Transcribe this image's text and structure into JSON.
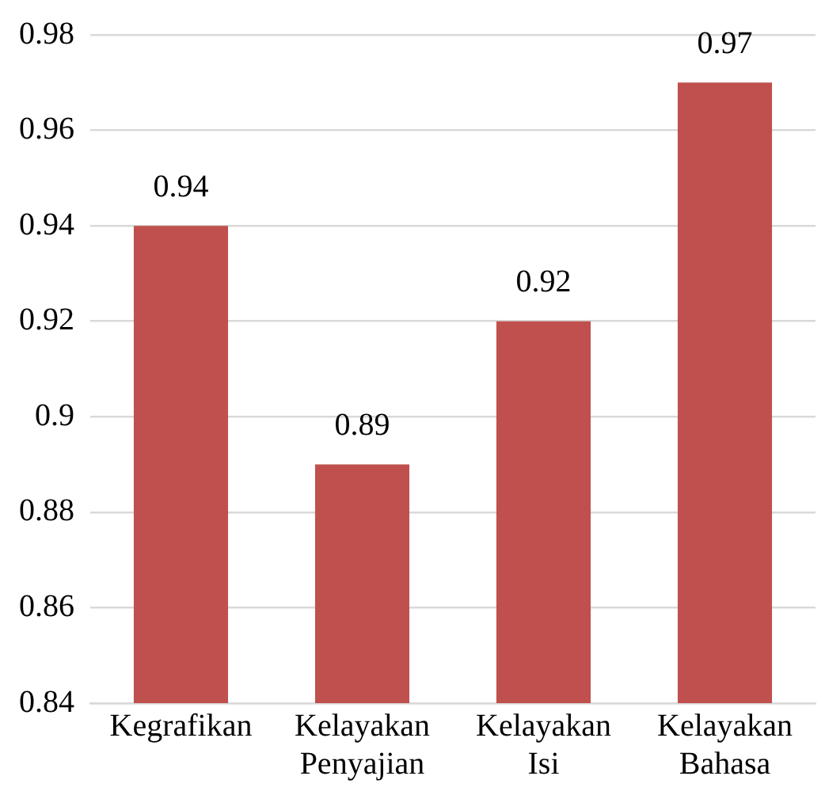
{
  "chart_data": {
    "type": "bar",
    "categories": [
      "Kegrafikan",
      "Kelayakan Penyajian",
      "Kelayakan Isi",
      "Kelayakan Bahasa"
    ],
    "values": [
      0.94,
      0.89,
      0.92,
      0.97
    ],
    "color": "#c0504d",
    "ylim": [
      0.84,
      0.98
    ],
    "yticks": [
      0.84,
      0.86,
      0.88,
      0.9,
      0.92,
      0.94,
      0.96,
      0.98
    ],
    "grid": "y",
    "data_labels": true
  }
}
